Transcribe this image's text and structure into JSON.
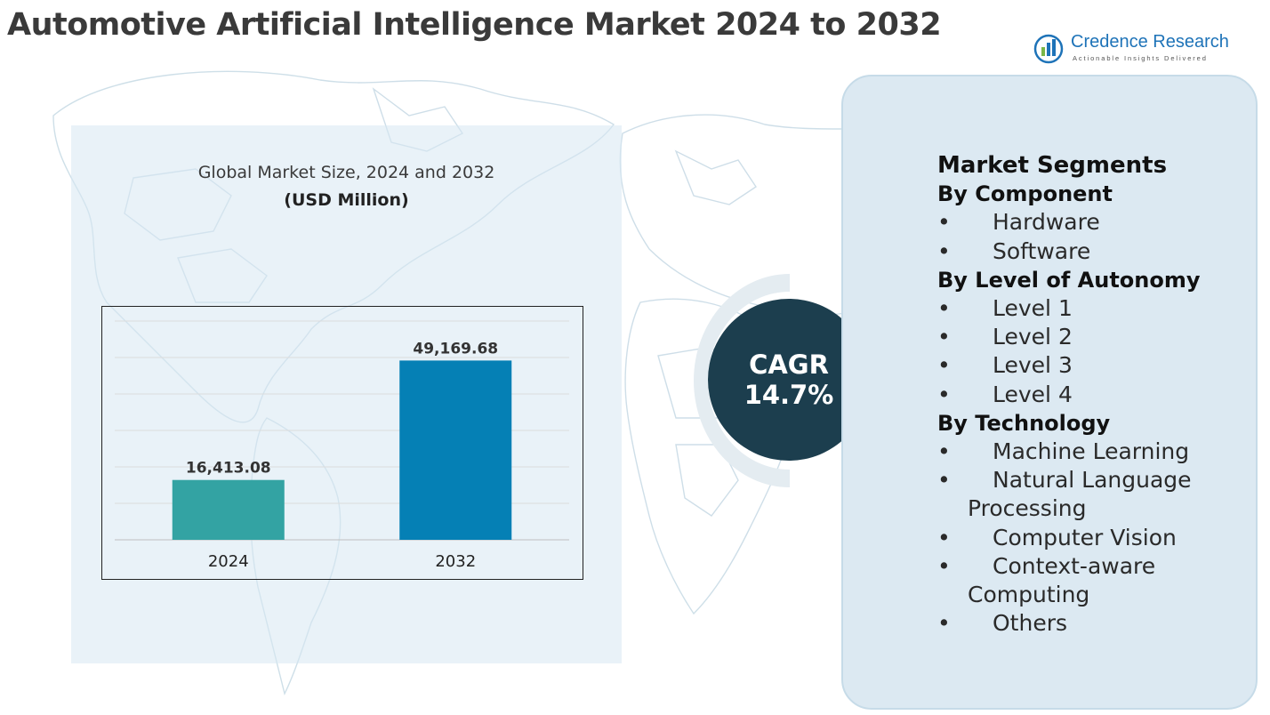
{
  "title": "Automotive Artificial Intelligence Market 2024 to 2032",
  "logo": {
    "name": "Credence Research",
    "tagline": "Actionable Insights Delivered",
    "brand_color": "#1e73b8"
  },
  "chart_panel": {
    "title": "Global Market Size, 2024 and 2032",
    "subtitle": "(USD Million)"
  },
  "chart_data": {
    "type": "bar",
    "categories": [
      "2024",
      "2032"
    ],
    "values": [
      16413.08,
      49169.68
    ],
    "value_labels": [
      "16,413.08",
      "49,169.68"
    ],
    "colors": [
      "#33a3a3",
      "#0580b5"
    ],
    "title": "Global Market Size, 2024 and 2032",
    "subtitle": "(USD Million)",
    "xlabel": "",
    "ylabel": "",
    "ylim": [
      0,
      60000
    ],
    "grid": true,
    "legend": "none"
  },
  "cagr": {
    "label": "CAGR",
    "value": "14.7%",
    "color": "#1c3e4e"
  },
  "segments": {
    "heading": "Market Segments",
    "groups": [
      {
        "title": "By Component",
        "items": [
          {
            "bullet": "•",
            "line1": "Hardware",
            "line2": ""
          },
          {
            "bullet": "•",
            "line1": "Software",
            "line2": ""
          }
        ]
      },
      {
        "title": "By Level of Autonomy",
        "items": [
          {
            "bullet": "•",
            "line1": "Level 1",
            "line2": ""
          },
          {
            "bullet": "•",
            "line1": "Level 2",
            "line2": ""
          },
          {
            "bullet": "•",
            "line1": "Level 3",
            "line2": ""
          },
          {
            "bullet": "•",
            "line1": "Level 4",
            "line2": ""
          }
        ]
      },
      {
        "title": "By Technology",
        "items": [
          {
            "bullet": "•",
            "line1": "Machine Learning",
            "line2": ""
          },
          {
            "bullet": "•",
            "line1": "Natural Language",
            "line2": "Processing"
          },
          {
            "bullet": "•",
            "line1": "Computer Vision",
            "line2": ""
          },
          {
            "bullet": "•",
            "line1": "Context-aware",
            "line2": "Computing"
          },
          {
            "bullet": "•",
            "line1": "Others",
            "line2": ""
          }
        ]
      }
    ]
  }
}
